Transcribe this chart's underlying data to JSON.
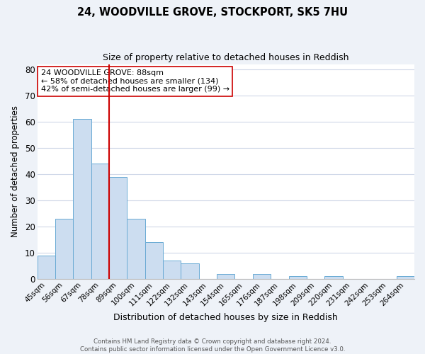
{
  "title": "24, WOODVILLE GROVE, STOCKPORT, SK5 7HU",
  "subtitle": "Size of property relative to detached houses in Reddish",
  "xlabel": "Distribution of detached houses by size in Reddish",
  "ylabel": "Number of detached properties",
  "bin_labels": [
    "45sqm",
    "56sqm",
    "67sqm",
    "78sqm",
    "89sqm",
    "100sqm",
    "111sqm",
    "122sqm",
    "132sqm",
    "143sqm",
    "154sqm",
    "165sqm",
    "176sqm",
    "187sqm",
    "198sqm",
    "209sqm",
    "220sqm",
    "231sqm",
    "242sqm",
    "253sqm",
    "264sqm"
  ],
  "bar_heights": [
    9,
    23,
    61,
    44,
    39,
    23,
    14,
    7,
    6,
    0,
    2,
    0,
    2,
    0,
    1,
    0,
    1,
    0,
    0,
    0,
    1
  ],
  "bar_color": "#ccddf0",
  "bar_edge_color": "#6aaad4",
  "ylim": [
    0,
    82
  ],
  "yticks": [
    0,
    10,
    20,
    30,
    40,
    50,
    60,
    70,
    80
  ],
  "property_line_x": 3.5,
  "property_line_color": "#cc0000",
  "annotation_line1": "24 WOODVILLE GROVE: 88sqm",
  "annotation_line2": "← 58% of detached houses are smaller (134)",
  "annotation_line3": "42% of semi-detached houses are larger (99) →",
  "footer_line1": "Contains HM Land Registry data © Crown copyright and database right 2024.",
  "footer_line2": "Contains public sector information licensed under the Open Government Licence v3.0.",
  "background_color": "#eef2f8",
  "plot_bg_color": "#ffffff",
  "grid_color": "#d0d8e8"
}
